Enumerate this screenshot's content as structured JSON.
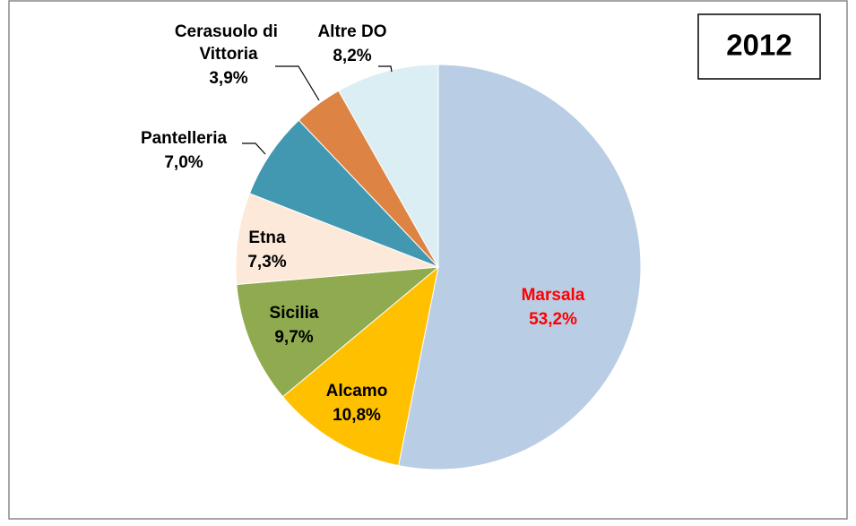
{
  "chart_data": {
    "type": "pie",
    "title": "2012",
    "categories": [
      "Marsala",
      "Alcamo",
      "Sicilia",
      "Etna",
      "Pantelleria",
      "Cerasuolo di Vittoria",
      "Altre DO"
    ],
    "values": [
      53.2,
      10.8,
      9.7,
      7.3,
      7.0,
      3.9,
      8.2
    ],
    "value_labels": [
      "53,2%",
      "10,8%",
      "9,7%",
      "7,3%",
      "7,0%",
      "3,9%",
      "8,2%"
    ],
    "colors": [
      "#b9cde5",
      "#ffc000",
      "#8faa4f",
      "#fde9d9",
      "#4298b1",
      "#dd8444",
      "#dbeef4"
    ]
  }
}
